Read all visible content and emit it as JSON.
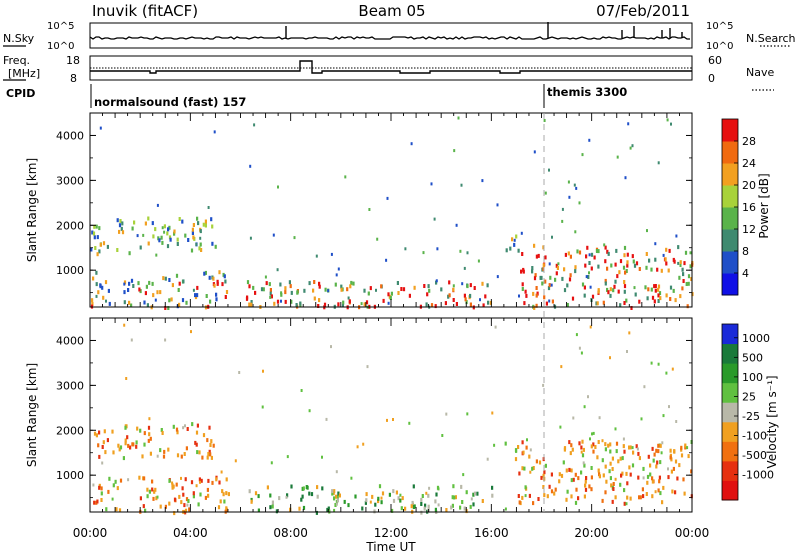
{
  "header": {
    "station": "Inuvik (fitACF)",
    "beam": "Beam 05",
    "date": "07/Feb/2011"
  },
  "noise_panel": {
    "left_label": "N.Sky",
    "right_label": "N.Search",
    "left_ticks": [
      "10^5",
      "10^0"
    ],
    "right_ticks": [
      "10^5",
      "10^0"
    ]
  },
  "freq_panel": {
    "left_label_1": "Freq.",
    "left_label_2": "[MHz]",
    "right_label": "Nave",
    "left_ticks": [
      "18",
      "8"
    ],
    "right_ticks": [
      "60",
      "0"
    ]
  },
  "cpid_panel": {
    "label": "CPID",
    "modes": [
      {
        "name": "normalsound (fast) 157",
        "start_hour": 0
      },
      {
        "name": "themis 3300",
        "start_hour": 18.1
      }
    ]
  },
  "chart_data": [
    {
      "type": "heatmap",
      "quantity": "power",
      "xlabel": "",
      "ylabel": "Slant Range [km]",
      "xlim": [
        0,
        24
      ],
      "ylim": [
        180,
        4500
      ],
      "yticks": [
        1000,
        2000,
        3000,
        4000
      ],
      "colorbar": {
        "label": "Power [dB]",
        "ticks": [
          "28",
          "24",
          "20",
          "16",
          "12",
          "8",
          "4"
        ],
        "colors": [
          "#1010e6",
          "#1f4fc8",
          "#3f8a70",
          "#5ab34a",
          "#a8d23a",
          "#f2a020",
          "#f06a10",
          "#e61010"
        ]
      },
      "regions": [
        {
          "t0": 0.0,
          "t1": 5.0,
          "r0": 1400,
          "r1": 2200,
          "level": "mid"
        },
        {
          "t0": 0.0,
          "t1": 5.5,
          "r0": 200,
          "r1": 1000,
          "level": "mixed"
        },
        {
          "t0": 6.2,
          "t1": 16.0,
          "r0": 200,
          "r1": 800,
          "level": "high"
        },
        {
          "t0": 16.5,
          "t1": 17.2,
          "r0": 1400,
          "r1": 1800,
          "level": "mid"
        },
        {
          "t0": 17.0,
          "t1": 24.0,
          "r0": 200,
          "r1": 1600,
          "level": "high"
        }
      ]
    },
    {
      "type": "heatmap",
      "quantity": "velocity",
      "xlabel": "Time UT",
      "ylabel": "Slant Range [km]",
      "xlim": [
        0,
        24
      ],
      "ylim": [
        180,
        4500
      ],
      "yticks": [
        1000,
        2000,
        3000,
        4000
      ],
      "xticks": [
        "00:00",
        "04:00",
        "08:00",
        "12:00",
        "16:00",
        "20:00",
        "00:00"
      ],
      "colorbar": {
        "label": "Velocity [m s⁻¹]",
        "ticks": [
          "1000",
          "500",
          "100",
          "25",
          "-25",
          "-100",
          "-500",
          "-1000"
        ],
        "colors": [
          "#1a2ad8",
          "#1a7a3a",
          "#2a9a2a",
          "#60c040",
          "#b8b8a8",
          "#f0a020",
          "#f07010",
          "#e63010",
          "#e01010"
        ]
      },
      "regions": [
        {
          "t0": 0.0,
          "t1": 5.0,
          "r0": 1400,
          "r1": 2200,
          "level": "negative"
        },
        {
          "t0": 0.0,
          "t1": 5.5,
          "r0": 200,
          "r1": 1000,
          "level": "negative"
        },
        {
          "t0": 6.2,
          "t1": 16.0,
          "r0": 200,
          "r1": 800,
          "level": "positive"
        },
        {
          "t0": 16.5,
          "t1": 17.2,
          "r0": 1400,
          "r1": 1800,
          "level": "negative"
        },
        {
          "t0": 17.0,
          "t1": 24.0,
          "r0": 400,
          "r1": 1800,
          "level": "negative"
        }
      ]
    }
  ]
}
